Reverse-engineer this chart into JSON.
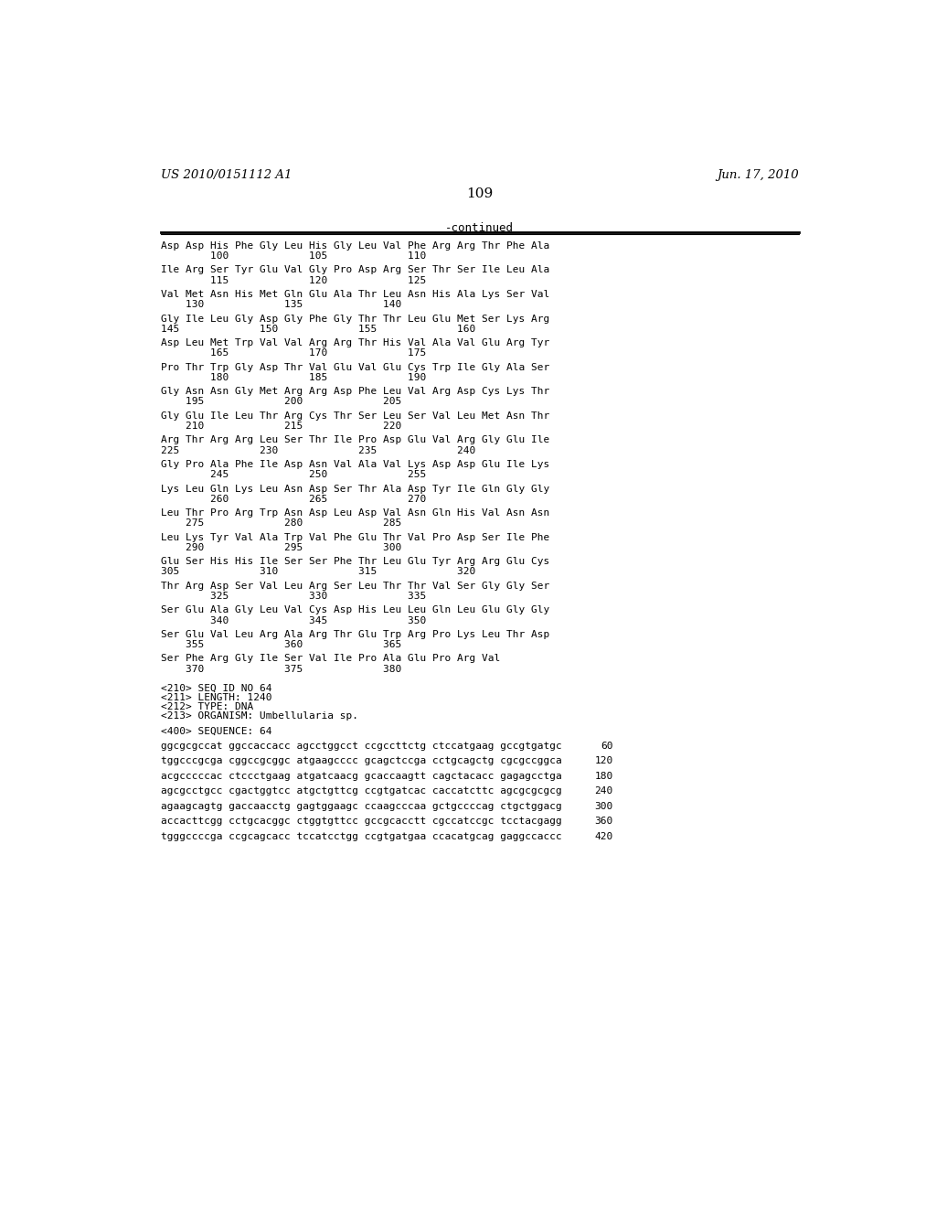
{
  "header_left": "US 2010/0151112 A1",
  "header_right": "Jun. 17, 2010",
  "page_number": "109",
  "continued_label": "-continued",
  "bg_color": "#ffffff",
  "text_color": "#000000",
  "mono_font": "monospace",
  "serif_font": "DejaVu Serif",
  "content": [
    {
      "type": "aa",
      "text": "Asp Asp His Phe Gly Leu His Gly Leu Val Phe Arg Arg Thr Phe Ala"
    },
    {
      "type": "num",
      "text": "        100             105             110"
    },
    {
      "type": "gap"
    },
    {
      "type": "aa",
      "text": "Ile Arg Ser Tyr Glu Val Gly Pro Asp Arg Ser Thr Ser Ile Leu Ala"
    },
    {
      "type": "num",
      "text": "        115             120             125"
    },
    {
      "type": "gap"
    },
    {
      "type": "aa",
      "text": "Val Met Asn His Met Gln Glu Ala Thr Leu Asn His Ala Lys Ser Val"
    },
    {
      "type": "num",
      "text": "    130             135             140"
    },
    {
      "type": "gap"
    },
    {
      "type": "aa",
      "text": "Gly Ile Leu Gly Asp Gly Phe Gly Thr Thr Leu Glu Met Ser Lys Arg"
    },
    {
      "type": "num",
      "text": "145             150             155             160"
    },
    {
      "type": "gap"
    },
    {
      "type": "aa",
      "text": "Asp Leu Met Trp Val Val Arg Arg Thr His Val Ala Val Glu Arg Tyr"
    },
    {
      "type": "num",
      "text": "        165             170             175"
    },
    {
      "type": "gap"
    },
    {
      "type": "aa",
      "text": "Pro Thr Trp Gly Asp Thr Val Glu Val Glu Cys Trp Ile Gly Ala Ser"
    },
    {
      "type": "num",
      "text": "        180             185             190"
    },
    {
      "type": "gap"
    },
    {
      "type": "aa",
      "text": "Gly Asn Asn Gly Met Arg Arg Asp Phe Leu Val Arg Asp Cys Lys Thr"
    },
    {
      "type": "num",
      "text": "    195             200             205"
    },
    {
      "type": "gap"
    },
    {
      "type": "aa",
      "text": "Gly Glu Ile Leu Thr Arg Cys Thr Ser Leu Ser Val Leu Met Asn Thr"
    },
    {
      "type": "num",
      "text": "    210             215             220"
    },
    {
      "type": "gap"
    },
    {
      "type": "aa",
      "text": "Arg Thr Arg Arg Leu Ser Thr Ile Pro Asp Glu Val Arg Gly Glu Ile"
    },
    {
      "type": "num",
      "text": "225             230             235             240"
    },
    {
      "type": "gap"
    },
    {
      "type": "aa",
      "text": "Gly Pro Ala Phe Ile Asp Asn Val Ala Val Lys Asp Asp Glu Ile Lys"
    },
    {
      "type": "num",
      "text": "        245             250             255"
    },
    {
      "type": "gap"
    },
    {
      "type": "aa",
      "text": "Lys Leu Gln Lys Leu Asn Asp Ser Thr Ala Asp Tyr Ile Gln Gly Gly"
    },
    {
      "type": "num",
      "text": "        260             265             270"
    },
    {
      "type": "gap"
    },
    {
      "type": "aa",
      "text": "Leu Thr Pro Arg Trp Asn Asp Leu Asp Val Asn Gln His Val Asn Asn"
    },
    {
      "type": "num",
      "text": "    275             280             285"
    },
    {
      "type": "gap"
    },
    {
      "type": "aa",
      "text": "Leu Lys Tyr Val Ala Trp Val Phe Glu Thr Val Pro Asp Ser Ile Phe"
    },
    {
      "type": "num",
      "text": "    290             295             300"
    },
    {
      "type": "gap"
    },
    {
      "type": "aa",
      "text": "Glu Ser His His Ile Ser Ser Phe Thr Leu Glu Tyr Arg Arg Glu Cys"
    },
    {
      "type": "num",
      "text": "305             310             315             320"
    },
    {
      "type": "gap"
    },
    {
      "type": "aa",
      "text": "Thr Arg Asp Ser Val Leu Arg Ser Leu Thr Thr Val Ser Gly Gly Ser"
    },
    {
      "type": "num",
      "text": "        325             330             335"
    },
    {
      "type": "gap"
    },
    {
      "type": "aa",
      "text": "Ser Glu Ala Gly Leu Val Cys Asp His Leu Leu Gln Leu Glu Gly Gly"
    },
    {
      "type": "num",
      "text": "        340             345             350"
    },
    {
      "type": "gap"
    },
    {
      "type": "aa",
      "text": "Ser Glu Val Leu Arg Ala Arg Thr Glu Trp Arg Pro Lys Leu Thr Asp"
    },
    {
      "type": "num",
      "text": "    355             360             365"
    },
    {
      "type": "gap"
    },
    {
      "type": "aa",
      "text": "Ser Phe Arg Gly Ile Ser Val Ile Pro Ala Glu Pro Arg Val"
    },
    {
      "type": "num",
      "text": "    370             375             380"
    },
    {
      "type": "gap"
    },
    {
      "type": "gap"
    },
    {
      "type": "meta",
      "text": "<210> SEQ ID NO 64"
    },
    {
      "type": "meta",
      "text": "<211> LENGTH: 1240"
    },
    {
      "type": "meta",
      "text": "<212> TYPE: DNA"
    },
    {
      "type": "meta",
      "text": "<213> ORGANISM: Umbellularia sp."
    },
    {
      "type": "gap"
    },
    {
      "type": "meta",
      "text": "<400> SEQUENCE: 64"
    },
    {
      "type": "gap"
    },
    {
      "type": "dna",
      "seq": "ggcgcgccat ggccaccacc agcctggcct ccgccttctg ctccatgaag gccgtgatgc",
      "num": "60"
    },
    {
      "type": "gap"
    },
    {
      "type": "dna",
      "seq": "tggcccgcga cggccgcggc atgaagcccc gcagctccga cctgcagctg cgcgccggca",
      "num": "120"
    },
    {
      "type": "gap"
    },
    {
      "type": "dna",
      "seq": "acgcccccac ctccctgaag atgatcaacg gcaccaagtt cagctacacc gagagcctga",
      "num": "180"
    },
    {
      "type": "gap"
    },
    {
      "type": "dna",
      "seq": "agcgcctgcc cgactggtcc atgctgttcg ccgtgatcac caccatcttc agcgcgcgcg",
      "num": "240"
    },
    {
      "type": "gap"
    },
    {
      "type": "dna",
      "seq": "agaagcagtg gaccaacctg gagtggaagc ccaagcccaa gctgccccag ctgctggacg",
      "num": "300"
    },
    {
      "type": "gap"
    },
    {
      "type": "dna",
      "seq": "accacttcgg cctgcacggc ctggtgttcc gccgcacctt cgccatccgc tcctacgagg",
      "num": "360"
    },
    {
      "type": "gap"
    },
    {
      "type": "dna",
      "seq": "tgggccccga ccgcagcacc tccatcctgg ccgtgatgaa ccacatgcag gaggccaccc",
      "num": "420"
    }
  ]
}
